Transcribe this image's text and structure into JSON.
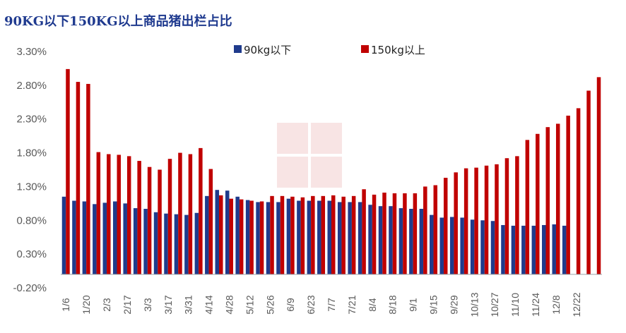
{
  "title": "90KG以下150KG以上商品猪出栏占比",
  "chart_data": {
    "type": "bar",
    "title": "90KG以下150KG以上商品猪出栏占比",
    "ylim": [
      -0.2,
      3.3
    ],
    "yticks": [
      "3.30%",
      "2.80%",
      "2.30%",
      "1.80%",
      "1.30%",
      "0.80%",
      "0.30%",
      "-0.20%"
    ],
    "ytick_values": [
      3.3,
      2.8,
      2.3,
      1.8,
      1.3,
      0.8,
      0.3,
      -0.2
    ],
    "xtick_labels": [
      "1/6",
      "1/20",
      "2/3",
      "2/17",
      "3/3",
      "3/17",
      "3/31",
      "4/14",
      "4/28",
      "5/12",
      "5/26",
      "6/9",
      "6/23",
      "7/7",
      "7/21",
      "8/4",
      "8/18",
      "9/1",
      "9/15",
      "9/29",
      "10/13",
      "10/27",
      "11/10",
      "11/24",
      "12/8",
      "12/22"
    ],
    "legend_position": "top",
    "series": [
      {
        "name": "90kg以下",
        "color": "#1f3b8c",
        "values": [
          1.15,
          1.09,
          1.08,
          1.04,
          1.06,
          1.08,
          1.05,
          0.98,
          0.97,
          0.92,
          0.9,
          0.89,
          0.88,
          0.91,
          1.16,
          1.25,
          1.24,
          1.15,
          1.1,
          1.07,
          1.07,
          1.07,
          1.12,
          1.09,
          1.09,
          1.09,
          1.09,
          1.07,
          1.07,
          1.07,
          1.03,
          1.01,
          1.01,
          0.98,
          0.97,
          0.97,
          0.88,
          0.84,
          0.85,
          0.84,
          0.81,
          0.8,
          0.79,
          0.73,
          0.72,
          0.72,
          0.72,
          0.73,
          0.74,
          0.72
        ]
      },
      {
        "name": "150kg以上",
        "color": "#c00000",
        "values": [
          3.04,
          2.85,
          2.82,
          1.81,
          1.78,
          1.77,
          1.75,
          1.68,
          1.59,
          1.55,
          1.71,
          1.8,
          1.78,
          1.87,
          1.56,
          1.17,
          1.12,
          1.11,
          1.09,
          1.08,
          1.16,
          1.16,
          1.15,
          1.14,
          1.16,
          1.16,
          1.17,
          1.15,
          1.16,
          1.26,
          1.18,
          1.21,
          1.2,
          1.2,
          1.2,
          1.3,
          1.32,
          1.43,
          1.51,
          1.57,
          1.58,
          1.61,
          1.63,
          1.72,
          1.75,
          1.99,
          2.08,
          2.18,
          2.23,
          2.35,
          2.46,
          2.72,
          2.92
        ]
      }
    ]
  }
}
